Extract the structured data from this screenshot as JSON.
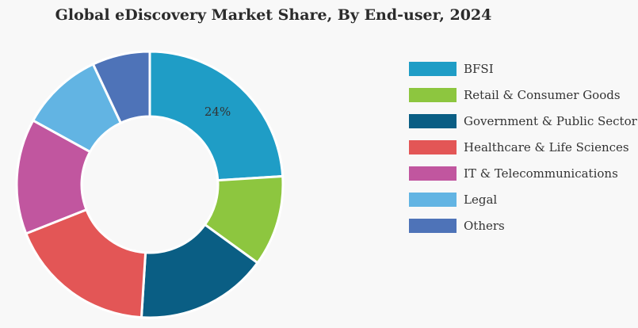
{
  "chart_data": {
    "type": "pie",
    "title": "Global eDiscovery Market Share, By End-user, 2024",
    "categories": [
      "BFSI",
      "Retail & Consumer Goods",
      "Government & Public Sector",
      "Healthcare & Life Sciences",
      "IT & Telecommunications",
      "Legal",
      "Others"
    ],
    "values": [
      24,
      11,
      16,
      18,
      14,
      10,
      7
    ],
    "colors": [
      "#1f9dc6",
      "#8dc63f",
      "#0a5e84",
      "#e35656",
      "#c1569f",
      "#62b4e3",
      "#4e73b8"
    ],
    "data_labels": [
      "24%",
      "",
      "",
      "",
      "",
      "",
      ""
    ],
    "donut": true,
    "legend_position": "right"
  }
}
